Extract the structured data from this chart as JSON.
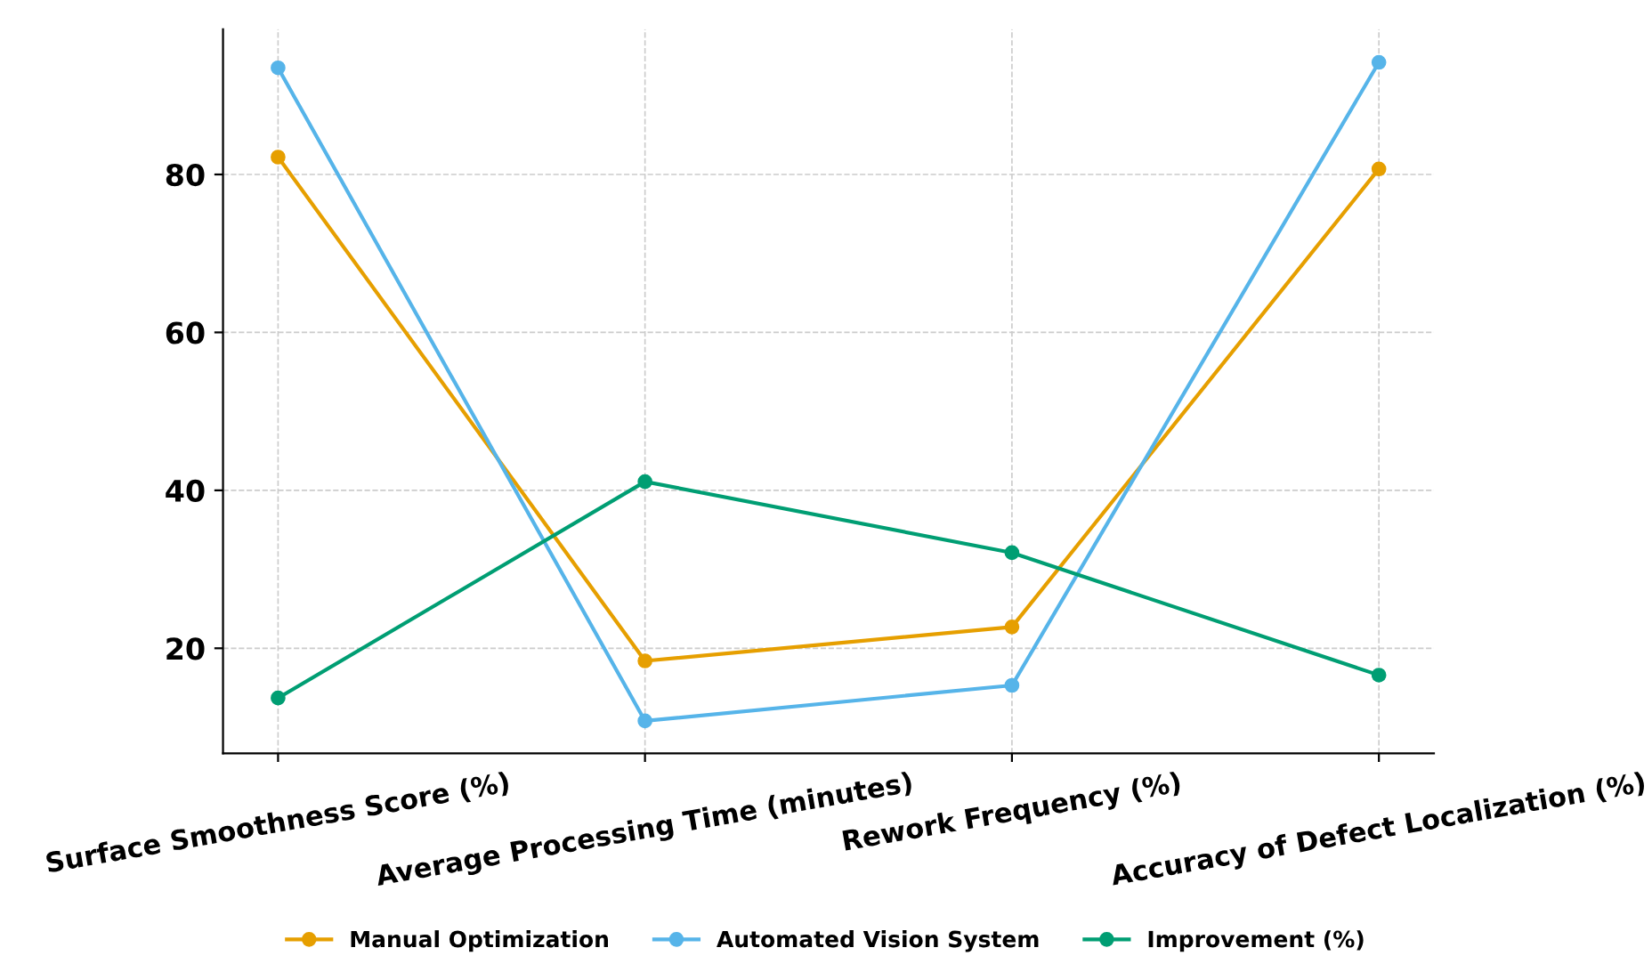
{
  "chart_data": {
    "type": "line",
    "categories": [
      "Surface Smoothness Score (%)",
      "Average Processing Time (minutes)",
      "Rework Frequency (%)",
      "Accuracy of Defect Localization (%)"
    ],
    "series": [
      {
        "name": "Manual Optimization",
        "color": "#e69f00",
        "values": [
          82.2,
          18.4,
          22.7,
          80.7
        ]
      },
      {
        "name": "Automated Vision System",
        "color": "#56b4e9",
        "values": [
          93.5,
          10.8,
          15.3,
          94.2
        ]
      },
      {
        "name": "Improvement (%)",
        "color": "#009e73",
        "values": [
          13.7,
          41.1,
          32.1,
          16.6
        ]
      }
    ],
    "ylim": [
      6.7,
      98.4
    ],
    "yticks": [
      20,
      40,
      60,
      80
    ],
    "grid": true,
    "legend": "bottom",
    "marker": "circle",
    "line_style": "solid"
  }
}
